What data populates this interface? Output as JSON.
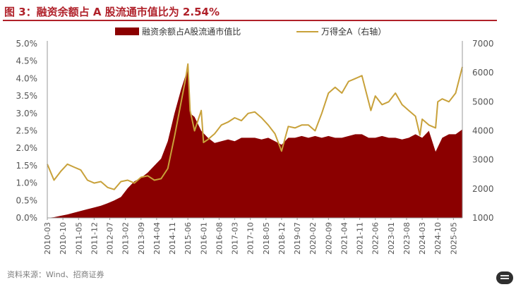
{
  "title": "图 3：融资余额占 A 股流通市值比为 2.54%",
  "source": "资料来源：Wind、招商证券",
  "colors": {
    "area": "#8b0000",
    "line": "#c8a13a",
    "title": "#b0212a",
    "axis_text": "#555555"
  },
  "chart_data": {
    "type": "area",
    "series": [
      {
        "name": "融资余额占A股流通市值比",
        "type": "area",
        "axis": "left",
        "x": [
          "2010-03",
          "2010-06",
          "2010-09",
          "2010-12",
          "2011-03",
          "2011-06",
          "2011-09",
          "2011-12",
          "2012-03",
          "2012-06",
          "2012-09",
          "2012-12",
          "2013-03",
          "2013-06",
          "2013-09",
          "2013-12",
          "2014-03",
          "2014-06",
          "2014-09",
          "2014-12",
          "2015-03",
          "2015-05",
          "2015-06",
          "2015-07",
          "2015-09",
          "2015-12",
          "2016-03",
          "2016-06",
          "2016-09",
          "2016-12",
          "2017-03",
          "2017-06",
          "2017-09",
          "2017-12",
          "2018-03",
          "2018-06",
          "2018-09",
          "2018-12",
          "2019-03",
          "2019-06",
          "2019-09",
          "2019-12",
          "2020-03",
          "2020-06",
          "2020-09",
          "2020-12",
          "2021-03",
          "2021-06",
          "2021-09",
          "2021-12",
          "2022-03",
          "2022-06",
          "2022-09",
          "2022-12",
          "2023-03",
          "2023-06",
          "2023-09",
          "2023-12",
          "2024-03",
          "2024-06",
          "2024-09",
          "2024-12",
          "2025-03",
          "2025-06",
          "2025-09"
        ],
        "values": [
          0.0,
          0.02,
          0.06,
          0.1,
          0.15,
          0.2,
          0.25,
          0.3,
          0.35,
          0.42,
          0.5,
          0.6,
          0.85,
          1.05,
          1.15,
          1.3,
          1.5,
          1.7,
          2.2,
          3.0,
          3.7,
          4.1,
          4.3,
          3.0,
          2.9,
          2.5,
          2.3,
          2.15,
          2.2,
          2.25,
          2.2,
          2.3,
          2.3,
          2.3,
          2.25,
          2.3,
          2.2,
          2.1,
          2.3,
          2.3,
          2.35,
          2.3,
          2.35,
          2.3,
          2.35,
          2.3,
          2.3,
          2.35,
          2.4,
          2.4,
          2.3,
          2.3,
          2.35,
          2.3,
          2.3,
          2.25,
          2.3,
          2.4,
          2.3,
          2.5,
          1.9,
          2.3,
          2.4,
          2.4,
          2.54
        ]
      },
      {
        "name": "万得全A（右轴）",
        "type": "line",
        "axis": "right",
        "x": [
          "2010-03",
          "2010-06",
          "2010-09",
          "2010-12",
          "2011-03",
          "2011-06",
          "2011-09",
          "2011-12",
          "2012-03",
          "2012-06",
          "2012-09",
          "2012-12",
          "2013-03",
          "2013-06",
          "2013-09",
          "2013-12",
          "2014-03",
          "2014-06",
          "2014-09",
          "2014-12",
          "2015-03",
          "2015-05",
          "2015-06",
          "2015-07",
          "2015-09",
          "2015-12",
          "2016-01",
          "2016-03",
          "2016-06",
          "2016-09",
          "2016-12",
          "2017-03",
          "2017-06",
          "2017-09",
          "2017-12",
          "2018-03",
          "2018-06",
          "2018-09",
          "2018-12",
          "2019-03",
          "2019-06",
          "2019-09",
          "2019-12",
          "2020-03",
          "2020-06",
          "2020-09",
          "2020-12",
          "2021-03",
          "2021-06",
          "2021-09",
          "2021-12",
          "2022-03",
          "2022-04",
          "2022-06",
          "2022-09",
          "2022-12",
          "2023-03",
          "2023-06",
          "2023-09",
          "2023-12",
          "2024-02",
          "2024-03",
          "2024-06",
          "2024-09",
          "2024-10",
          "2024-12",
          "2025-03",
          "2025-06",
          "2025-09"
        ],
        "values": [
          2850,
          2300,
          2600,
          2850,
          2750,
          2650,
          2300,
          2200,
          2250,
          2050,
          1980,
          2250,
          2300,
          2200,
          2400,
          2450,
          2300,
          2350,
          2700,
          3800,
          5000,
          5800,
          6300,
          4700,
          4000,
          4700,
          3600,
          3700,
          3900,
          4200,
          4300,
          4450,
          4350,
          4600,
          4650,
          4450,
          4200,
          3900,
          3300,
          4150,
          4100,
          4200,
          4200,
          4000,
          4600,
          5300,
          5500,
          5300,
          5700,
          5800,
          5900,
          5000,
          4700,
          5200,
          4900,
          5000,
          5300,
          4900,
          4700,
          4500,
          3850,
          4400,
          4200,
          4100,
          5000,
          5100,
          5000,
          5300,
          6200
        ]
      }
    ],
    "x_tick_labels": [
      "2010-03",
      "2010-10",
      "2011-05",
      "2011-12",
      "2012-07",
      "2013-02",
      "2013-09",
      "2014-04",
      "2014-11",
      "2015-06",
      "2016-01",
      "2016-08",
      "2017-03",
      "2017-10",
      "2018-05",
      "2018-12",
      "2019-07",
      "2020-02",
      "2020-09",
      "2021-04",
      "2021-11",
      "2022-06",
      "2023-01",
      "2023-08",
      "2024-03",
      "2024-10",
      "2025-05"
    ],
    "y_left": {
      "min": 0,
      "max": 5,
      "ticks": [
        "0.0%",
        "0.5%",
        "1.0%",
        "1.5%",
        "2.0%",
        "2.5%",
        "3.0%",
        "3.5%",
        "4.0%",
        "4.5%",
        "5.0%"
      ]
    },
    "y_right": {
      "min": 1000,
      "max": 7000,
      "ticks": [
        "1000",
        "2000",
        "3000",
        "4000",
        "5000",
        "6000",
        "7000"
      ]
    },
    "grid": false,
    "legend_position": "top"
  }
}
